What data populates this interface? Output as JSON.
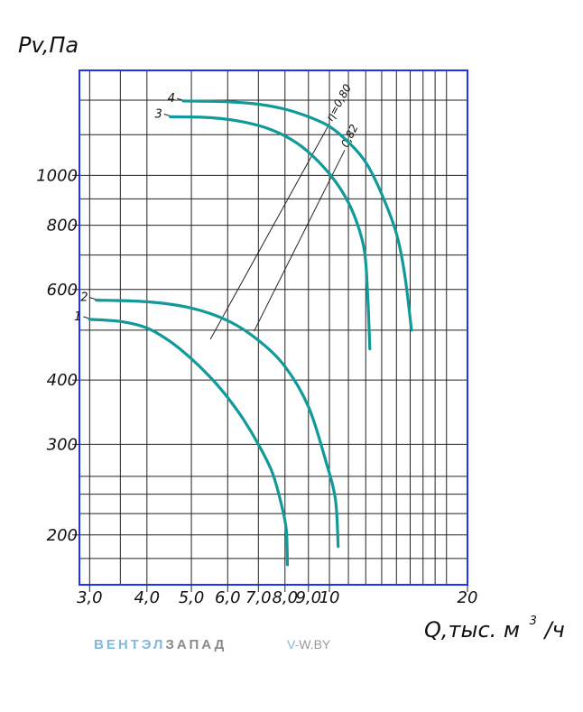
{
  "chart_data": {
    "type": "line",
    "ylabel": "Pv,Па",
    "xlabel_main": "Q,тыс. м",
    "xlabel_sup": "3",
    "xlabel_tail": "/ч",
    "x_scale": "log",
    "y_scale": "log",
    "xlim": [
      2.85,
      20
    ],
    "ylim": [
      160,
      1600
    ],
    "grid": true,
    "x_ticks": [
      {
        "v": 3.0,
        "label": "3,0"
      },
      {
        "v": 4.0,
        "label": "4,0"
      },
      {
        "v": 5.0,
        "label": "5,0"
      },
      {
        "v": 6.0,
        "label": "6,0"
      },
      {
        "v": 7.0,
        "label": "7,0"
      },
      {
        "v": 8.0,
        "label": "8,0"
      },
      {
        "v": 9.0,
        "label": "9,0"
      },
      {
        "v": 10.0,
        "label": "10"
      },
      {
        "v": 20.0,
        "label": "20"
      }
    ],
    "x_minor": [
      3.5,
      11.0,
      12.0,
      13.0,
      14.0,
      15.0,
      16.0,
      17.0,
      18.0
    ],
    "y_ticks": [
      {
        "v": 200,
        "label": "200"
      },
      {
        "v": 300,
        "label": "300"
      },
      {
        "v": 400,
        "label": "400"
      },
      {
        "v": 600,
        "label": "600"
      },
      {
        "v": 800,
        "label": "800"
      },
      {
        "v": 1000,
        "label": "1000"
      }
    ],
    "y_minor": [
      180,
      220,
      240,
      260,
      500,
      700,
      900,
      1200,
      1400
    ],
    "curve_color": "#12999a",
    "frame_color": "#1c33ff",
    "series": [
      {
        "name": "1",
        "points": [
          [
            3.0,
            525
          ],
          [
            3.5,
            520
          ],
          [
            4.0,
            505
          ],
          [
            4.5,
            475
          ],
          [
            5.0,
            440
          ],
          [
            5.5,
            405
          ],
          [
            6.0,
            370
          ],
          [
            6.5,
            335
          ],
          [
            7.0,
            300
          ],
          [
            7.5,
            265
          ],
          [
            7.85,
            230
          ],
          [
            8.05,
            205
          ],
          [
            8.1,
            175
          ]
        ]
      },
      {
        "name": "2",
        "points": [
          [
            3.1,
            572
          ],
          [
            4.0,
            568
          ],
          [
            5.0,
            552
          ],
          [
            6.0,
            522
          ],
          [
            7.0,
            478
          ],
          [
            8.0,
            425
          ],
          [
            9.0,
            355
          ],
          [
            9.8,
            280
          ],
          [
            10.3,
            235
          ],
          [
            10.45,
            190
          ]
        ]
      },
      {
        "name": "3",
        "points": [
          [
            4.5,
            1300
          ],
          [
            5.5,
            1295
          ],
          [
            6.5,
            1270
          ],
          [
            7.5,
            1225
          ],
          [
            8.5,
            1155
          ],
          [
            9.5,
            1060
          ],
          [
            10.5,
            950
          ],
          [
            11.3,
            840
          ],
          [
            11.9,
            720
          ],
          [
            12.1,
            600
          ],
          [
            12.25,
            460
          ]
        ]
      },
      {
        "name": "4",
        "points": [
          [
            4.8,
            1395
          ],
          [
            6.0,
            1390
          ],
          [
            7.0,
            1375
          ],
          [
            8.0,
            1345
          ],
          [
            9.0,
            1300
          ],
          [
            10.0,
            1245
          ],
          [
            11.0,
            1160
          ],
          [
            12.0,
            1060
          ],
          [
            13.0,
            920
          ],
          [
            14.0,
            770
          ],
          [
            14.6,
            640
          ],
          [
            15.1,
            500
          ]
        ]
      }
    ],
    "efficiency_lines": [
      {
        "label": "η=0,80",
        "points": [
          [
            5.5,
            480
          ],
          [
            10.0,
            1260
          ]
        ]
      },
      {
        "label": "0,82",
        "points": [
          [
            6.85,
            498
          ],
          [
            10.8,
            1120
          ]
        ]
      }
    ]
  },
  "watermark": {
    "brand_a": "ВЕНТЭЛ",
    "brand_b": "ЗАПАД",
    "site_a": "V-",
    "site_b": "W.BY"
  }
}
